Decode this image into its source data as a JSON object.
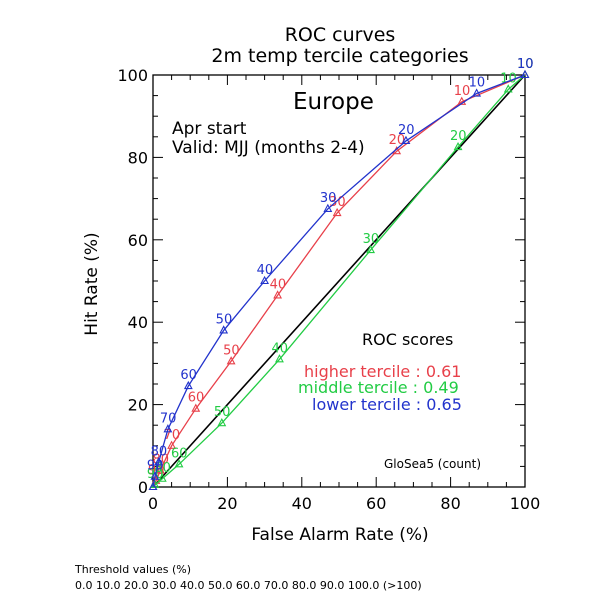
{
  "chart_data": {
    "type": "line",
    "title": "ROC curves",
    "subtitle": "2m temp tercile categories",
    "region": "Europe",
    "start_label": "Apr start",
    "valid_label": "Valid: MJJ (months 2-4)",
    "xlabel": "False Alarm Rate (%)",
    "ylabel": "Hit Rate (%)",
    "xlim": [
      0,
      100
    ],
    "ylim": [
      0,
      100
    ],
    "x_ticks": [
      "0",
      "20",
      "40",
      "60",
      "80",
      "100"
    ],
    "y_ticks": [
      "0",
      "20",
      "40",
      "60",
      "80",
      "100"
    ],
    "diagonal": true,
    "scores_title": "ROC scores",
    "model_label": "GloSea5 (count)",
    "series": [
      {
        "name": "higher tercile",
        "color": "#e8404a",
        "score_label": "higher tercile : 0.61",
        "points": [
          {
            "x": 100,
            "y": 100,
            "label": "10"
          },
          {
            "x": 83,
            "y": 93.5,
            "label": "10"
          },
          {
            "x": 65.5,
            "y": 81.5,
            "label": "20"
          },
          {
            "x": 49.5,
            "y": 66.5,
            "label": "30"
          },
          {
            "x": 33.5,
            "y": 46.5,
            "label": "40"
          },
          {
            "x": 21,
            "y": 30.5,
            "label": "50"
          },
          {
            "x": 11.5,
            "y": 19,
            "label": "60"
          },
          {
            "x": 5,
            "y": 10,
            "label": "70"
          },
          {
            "x": 2,
            "y": 4,
            "label": "80"
          },
          {
            "x": 0.8,
            "y": 1.5,
            "label": "90"
          },
          {
            "x": 0,
            "y": 0,
            "label": ""
          }
        ]
      },
      {
        "name": "middle tercile",
        "color": "#22cc44",
        "score_label": "middle tercile : 0.49",
        "points": [
          {
            "x": 100,
            "y": 100,
            "label": "10"
          },
          {
            "x": 95.5,
            "y": 96.5,
            "label": "10"
          },
          {
            "x": 82,
            "y": 82.5,
            "label": "20"
          },
          {
            "x": 58.5,
            "y": 57.5,
            "label": "30"
          },
          {
            "x": 34,
            "y": 31,
            "label": "40"
          },
          {
            "x": 18.5,
            "y": 15.5,
            "label": "50"
          },
          {
            "x": 7,
            "y": 5.5,
            "label": "60"
          },
          {
            "x": 2.5,
            "y": 2,
            "label": "80"
          },
          {
            "x": 0.5,
            "y": 0.5,
            "label": "90"
          },
          {
            "x": 0,
            "y": 0,
            "label": ""
          }
        ]
      },
      {
        "name": "lower tercile",
        "color": "#2233cc",
        "score_label": "lower tercile : 0.65",
        "points": [
          {
            "x": 100,
            "y": 100,
            "label": "10"
          },
          {
            "x": 87,
            "y": 95.5,
            "label": "10"
          },
          {
            "x": 68,
            "y": 84,
            "label": "20"
          },
          {
            "x": 47,
            "y": 67.5,
            "label": "30"
          },
          {
            "x": 30,
            "y": 50,
            "label": "40"
          },
          {
            "x": 19,
            "y": 38,
            "label": "50"
          },
          {
            "x": 9.5,
            "y": 24.5,
            "label": "60"
          },
          {
            "x": 4,
            "y": 14,
            "label": "70"
          },
          {
            "x": 1.5,
            "y": 6,
            "label": "80"
          },
          {
            "x": 0.5,
            "y": 2.5,
            "label": "90"
          },
          {
            "x": 0,
            "y": 0,
            "label": ""
          }
        ]
      }
    ]
  },
  "footer": {
    "threshold_title": "Threshold values (%)",
    "threshold_values": "0.0 10.0 20.0 30.0 40.0 50.0 60.0 70.0 80.0 90.0 100.0 (>100)"
  }
}
